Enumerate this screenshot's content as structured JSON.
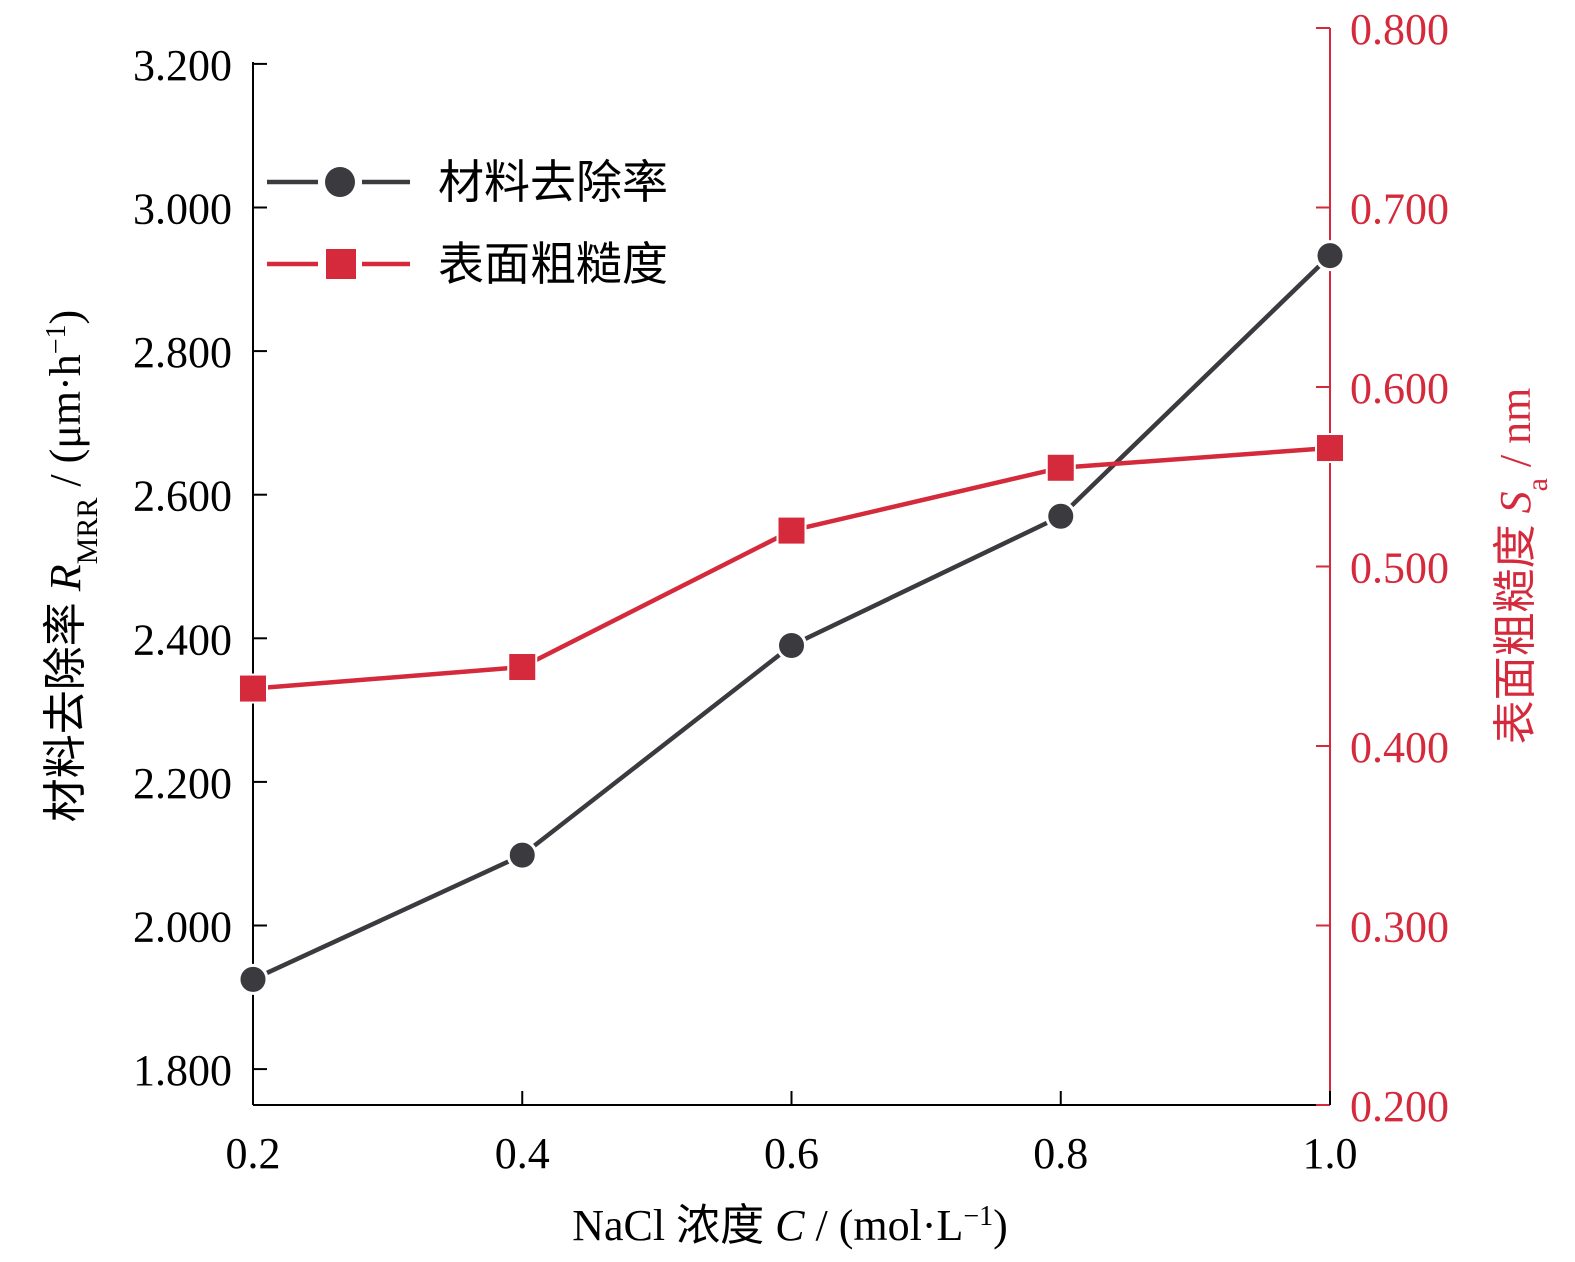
{
  "chart_data": {
    "type": "line",
    "x": [
      0.2,
      0.4,
      0.6,
      0.8,
      1.0
    ],
    "x_tick_labels": [
      "0.2",
      "0.4",
      "0.6",
      "0.8",
      "1.0"
    ],
    "xlim": [
      0.2,
      1.0
    ],
    "xlabel": {
      "prefix": "NaCl 浓度 ",
      "var": "C",
      "mid": " / (mol·L",
      "sup": "−1",
      "suffix": ")"
    },
    "y_left": {
      "ylim": [
        1.75,
        3.25
      ],
      "ticks": [
        1.8,
        2.0,
        2.2,
        2.4,
        2.6,
        2.8,
        3.0,
        3.2
      ],
      "tick_labels": [
        "1.800",
        "2.000",
        "2.200",
        "2.400",
        "2.600",
        "2.800",
        "3.000",
        "3.200"
      ],
      "label": {
        "prefix": "材料去除率 ",
        "var": "R",
        "sub": "MRR",
        "mid": " / (μm·h",
        "sup": "−1",
        "suffix": ")"
      },
      "color": "#000000"
    },
    "y_right": {
      "ylim": [
        0.2,
        0.8
      ],
      "ticks": [
        0.2,
        0.3,
        0.4,
        0.5,
        0.6,
        0.7,
        0.8
      ],
      "tick_labels": [
        "0.200",
        "0.300",
        "0.400",
        "0.500",
        "0.600",
        "0.700",
        "0.800"
      ],
      "label": {
        "prefix": "表面粗糙度 ",
        "var": "S",
        "sub": "a",
        "suffix": " / nm"
      },
      "color": "#d42a3c"
    },
    "series": [
      {
        "name": "材料去除率",
        "axis": "left",
        "marker": "circle",
        "color": "#3a3a3f",
        "values": [
          1.925,
          2.098,
          2.39,
          2.57,
          2.933
        ]
      },
      {
        "name": "表面粗糙度",
        "axis": "right",
        "marker": "square",
        "color": "#d42a3c",
        "values": [
          0.432,
          0.444,
          0.52,
          0.555,
          0.566
        ]
      }
    ],
    "legend": {
      "position": "top-left"
    },
    "grid": false
  }
}
